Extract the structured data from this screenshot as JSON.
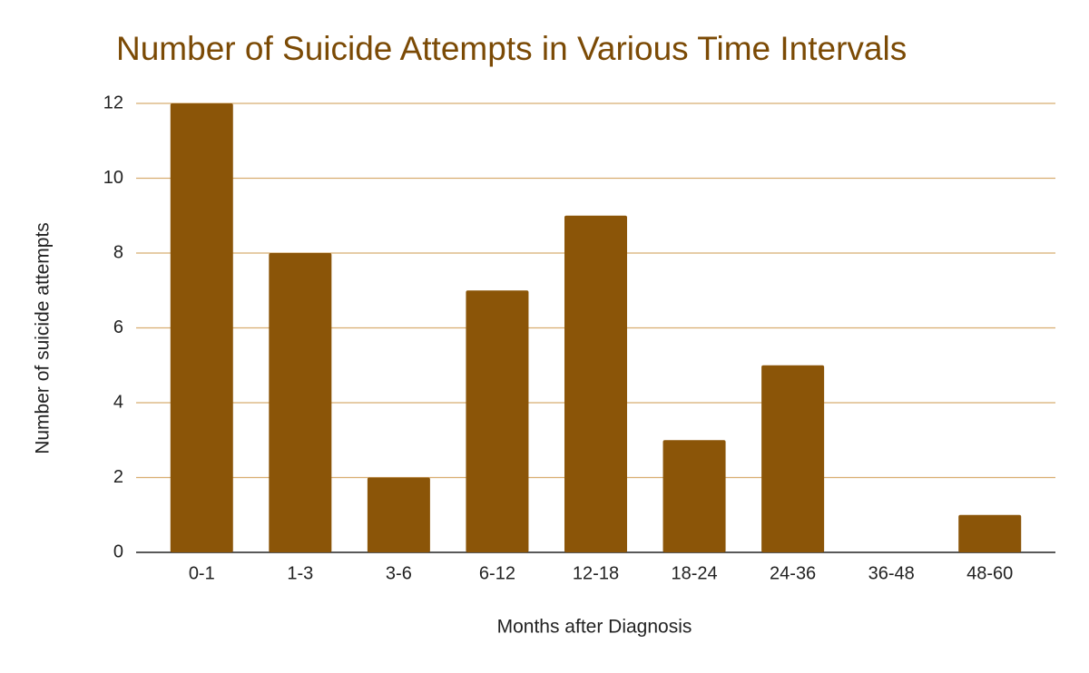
{
  "chart_data": {
    "type": "bar",
    "title": "Number of Suicide Attempts in Various Time Intervals",
    "x_label": "Months after Diagnosis",
    "y_label": "Number of suicide attempts",
    "categories": [
      "0-1",
      "1-3",
      "3-6",
      "6-12",
      "12-18",
      "18-24",
      "24-36",
      "36-48",
      "48-60"
    ],
    "values": [
      12,
      8,
      2,
      7,
      9,
      3,
      5,
      0,
      1
    ],
    "color": "#8b5508",
    "ylim": [
      0,
      12
    ],
    "yticks": [
      0,
      2,
      4,
      6,
      8,
      10,
      12
    ],
    "grid": true
  }
}
